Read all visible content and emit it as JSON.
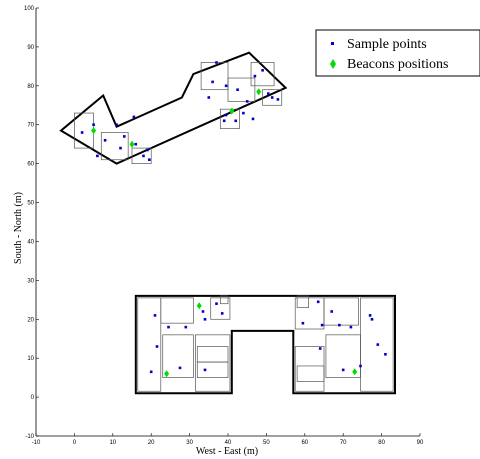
{
  "chart_data": {
    "type": "scatter",
    "title": "",
    "xlabel": "West - East (m)",
    "ylabel": "South - North (m)",
    "xlim": [
      -10,
      90
    ],
    "ylim": [
      -10,
      100
    ],
    "xticks": [
      -10,
      0,
      10,
      20,
      30,
      40,
      50,
      60,
      70,
      80,
      90
    ],
    "yticks": [
      -10,
      0,
      10,
      20,
      30,
      40,
      50,
      60,
      70,
      80,
      90,
      100
    ],
    "grid": false,
    "legend_position": "top-right",
    "series": [
      {
        "name": "Sample points",
        "marker": "square",
        "color": "#0000cc",
        "points": [
          [
            21,
            21
          ],
          [
            24.5,
            18
          ],
          [
            29,
            18
          ],
          [
            33.5,
            22
          ],
          [
            34,
            20
          ],
          [
            37,
            24
          ],
          [
            38.5,
            21.5
          ],
          [
            21.5,
            13
          ],
          [
            27.5,
            7.5
          ],
          [
            20,
            6.5
          ],
          [
            34,
            7
          ],
          [
            63.5,
            24.5
          ],
          [
            67,
            22
          ],
          [
            69,
            18.5
          ],
          [
            72,
            18
          ],
          [
            77,
            21
          ],
          [
            77.5,
            20
          ],
          [
            74.5,
            8
          ],
          [
            70,
            7
          ],
          [
            59.5,
            19
          ],
          [
            64.5,
            18.5
          ],
          [
            64,
            12.5
          ],
          [
            79,
            13.5
          ],
          [
            81,
            11
          ],
          [
            2,
            68
          ],
          [
            5,
            70
          ],
          [
            8,
            66
          ],
          [
            12,
            64
          ],
          [
            13,
            67
          ],
          [
            18,
            62
          ],
          [
            16,
            65
          ],
          [
            6,
            62
          ],
          [
            11,
            70
          ],
          [
            15.5,
            72
          ],
          [
            19,
            63.5
          ],
          [
            19.5,
            61
          ],
          [
            35,
            77
          ],
          [
            36,
            81
          ],
          [
            39.5,
            80
          ],
          [
            42.5,
            79
          ],
          [
            45,
            76
          ],
          [
            46.5,
            71.5
          ],
          [
            49,
            84
          ],
          [
            50.5,
            78
          ],
          [
            51.5,
            77
          ],
          [
            53,
            76.5
          ],
          [
            47,
            82.5
          ],
          [
            39,
            71
          ],
          [
            39.5,
            72.5
          ],
          [
            42,
            71
          ],
          [
            44,
            73
          ],
          [
            37,
            86
          ]
        ]
      },
      {
        "name": "Beacons positions",
        "marker": "diamond",
        "color": "#00dd00",
        "points": [
          [
            5,
            68.5
          ],
          [
            15,
            65
          ],
          [
            41,
            73.5
          ],
          [
            48,
            78.5
          ],
          [
            32.5,
            23.5
          ],
          [
            24,
            6
          ],
          [
            73,
            6.5
          ]
        ]
      }
    ],
    "floor_plan": {
      "lower_building_outline": [
        [
          16,
          26
        ],
        [
          83.5,
          26
        ],
        [
          83.5,
          1
        ],
        [
          57,
          1
        ],
        [
          57,
          17
        ],
        [
          41,
          17
        ],
        [
          41,
          1
        ],
        [
          16,
          1
        ]
      ],
      "upper_building_outline": [
        [
          -3.5,
          68.5
        ],
        [
          7.5,
          77.5
        ],
        [
          11,
          69.5
        ],
        [
          28,
          77
        ],
        [
          31,
          83
        ],
        [
          45.5,
          88.5
        ],
        [
          55,
          79.5
        ],
        [
          11,
          60
        ],
        [
          -3.5,
          68.5
        ]
      ]
    }
  },
  "legend": {
    "sample_label": "Sample points",
    "beacon_label": "Beacons positions"
  },
  "colors": {
    "sample": "#0000cc",
    "beacon": "#00dd00",
    "axis": "#000000"
  }
}
